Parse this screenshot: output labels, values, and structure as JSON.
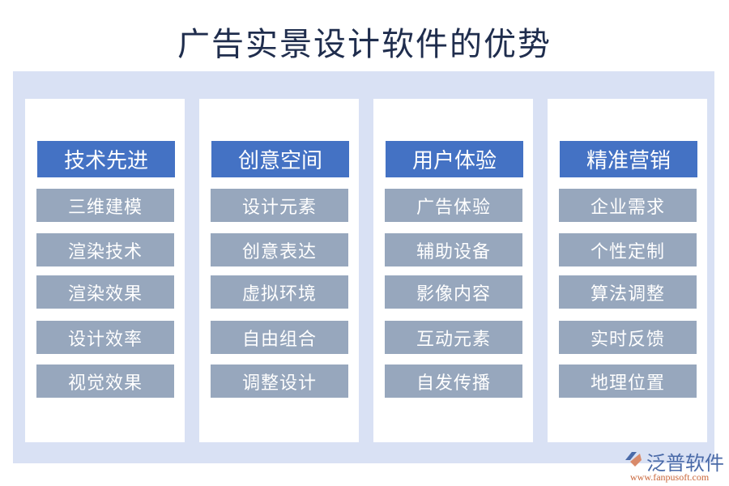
{
  "title": "广告实景设计软件的优势",
  "columns": [
    {
      "header": "技术先进",
      "items": [
        "三维建模",
        "渲染技术",
        "渲染效果",
        "设计效率",
        "视觉效果"
      ]
    },
    {
      "header": "创意空间",
      "items": [
        "设计元素",
        "创意表达",
        "虚拟环境",
        "自由组合",
        "调整设计"
      ]
    },
    {
      "header": "用户体验",
      "items": [
        "广告体验",
        "辅助设备",
        "影像内容",
        "互动元素",
        "自发传播"
      ]
    },
    {
      "header": "精准营销",
      "items": [
        "企业需求",
        "个性定制",
        "算法调整",
        "实时反馈",
        "地理位置"
      ]
    }
  ],
  "logo": {
    "name": "泛普软件",
    "url": "www.fanpusoft.com"
  },
  "colors": {
    "panel": "#d9e1f4",
    "header": "#4472c4",
    "item": "#97a7bd"
  }
}
